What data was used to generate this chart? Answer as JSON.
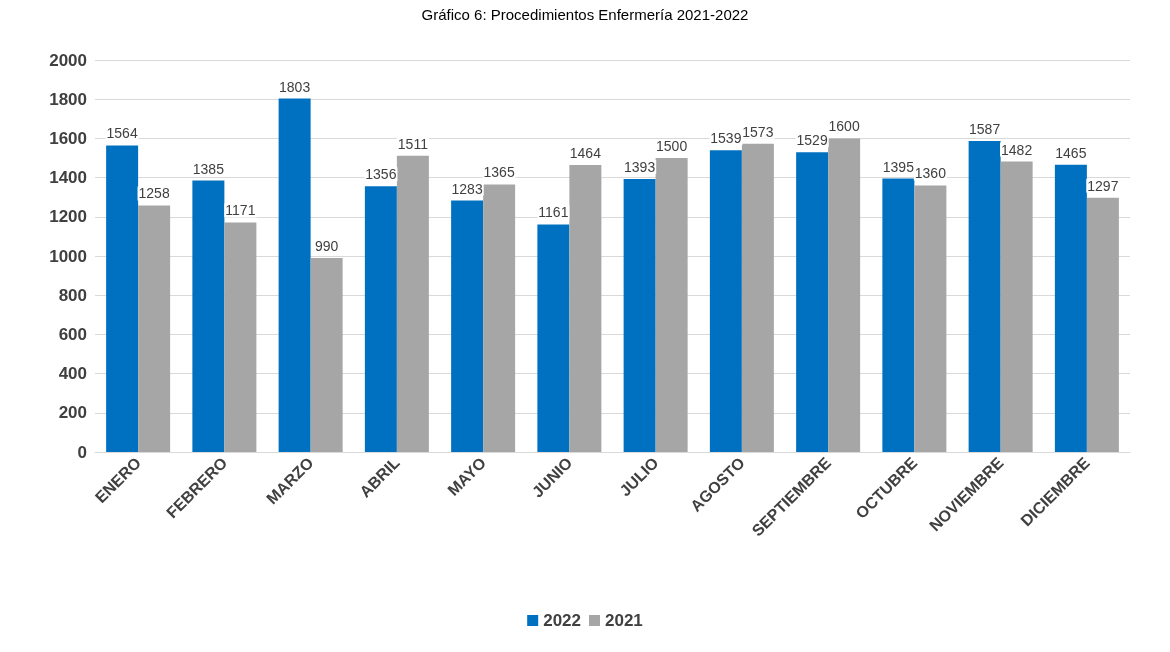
{
  "chart_data": {
    "type": "bar",
    "title": "Gráfico 6: Procedimientos Enfermería 2021-2022",
    "categories": [
      "ENERO",
      "FEBRERO",
      "MARZO",
      "ABRIL",
      "MAYO",
      "JUNIO",
      "JULIO",
      "AGOSTO",
      "SEPTIEMBRE",
      "OCTUBRE",
      "NOVIEMBRE",
      "DICIEMBRE"
    ],
    "series": [
      {
        "name": "2022",
        "color": "#0070c0",
        "values": [
          1564,
          1385,
          1803,
          1356,
          1283,
          1161,
          1393,
          1539,
          1529,
          1395,
          1587,
          1465
        ]
      },
      {
        "name": "2021",
        "color": "#a6a6a6",
        "values": [
          1258,
          1171,
          990,
          1511,
          1365,
          1464,
          1500,
          1573,
          1600,
          1360,
          1482,
          1297
        ]
      }
    ],
    "ylim": [
      0,
      2000
    ],
    "yticks": [
      0,
      200,
      400,
      600,
      800,
      1000,
      1200,
      1400,
      1600,
      1800,
      2000
    ],
    "grid": "y",
    "legend": "bottom",
    "data_labels": true
  }
}
